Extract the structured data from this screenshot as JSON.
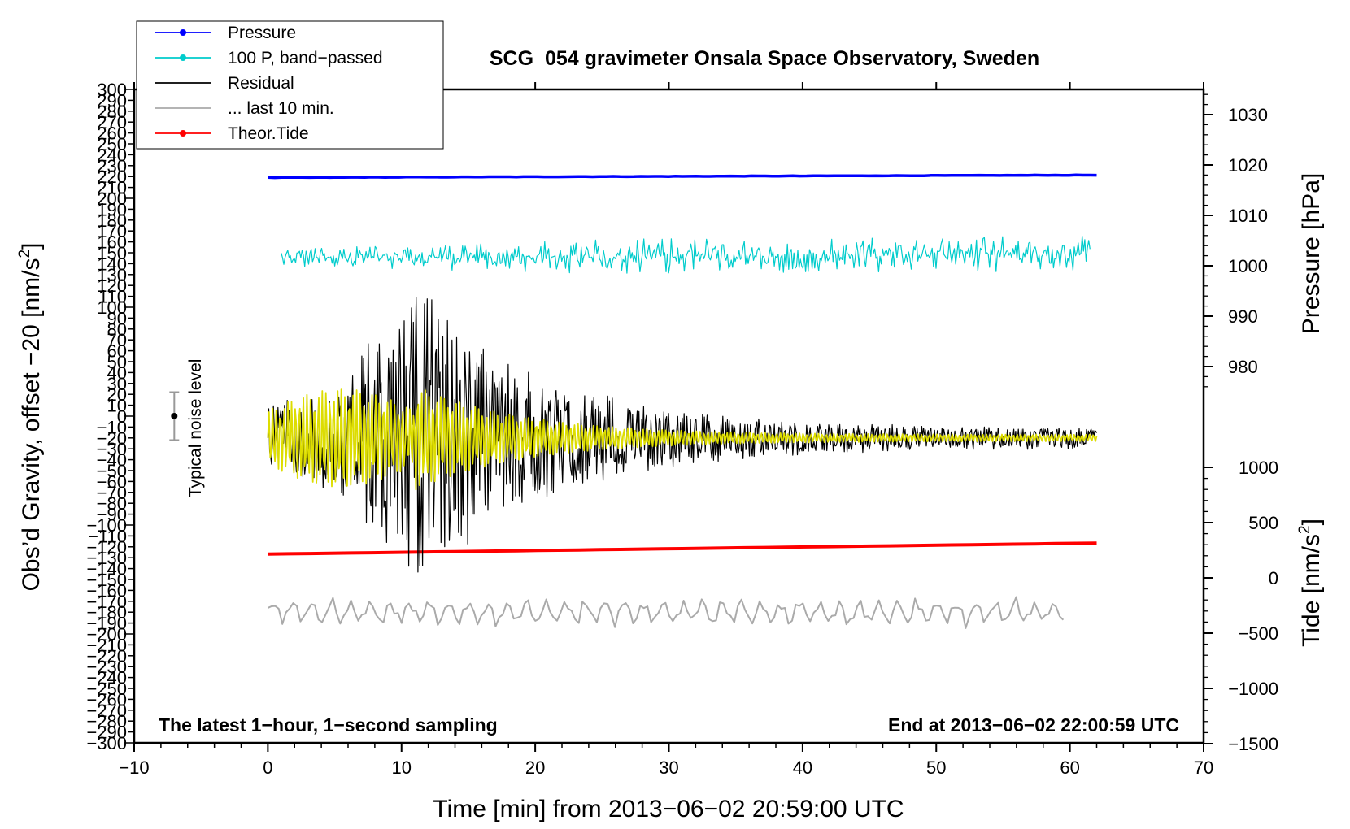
{
  "chart_data": {
    "type": "line",
    "title": "SCG_054 gravimeter Onsala Space Observatory, Sweden",
    "xlabel": "Time [min] from 2013−06−02 20:59:00 UTC",
    "ylabel_left_main": "Obs’d Gravity, offset −20 [nm/s",
    "ylabel_left_sup": "2",
    "ylabel_left_close": "]",
    "ylabel_right_top": "Pressure [hPa]",
    "ylabel_right_bottom_main": "Tide [nm/s",
    "ylabel_right_bottom_sup": "2",
    "ylabel_right_bottom_close": "]",
    "annotation_left": "The latest 1−hour, 1−second sampling",
    "annotation_right": "End at 2013−06−02 22:00:59 UTC",
    "noise_label": "Typical noise level",
    "xlim": [
      -10,
      70
    ],
    "x_ticks": [
      -10,
      0,
      10,
      20,
      30,
      40,
      50,
      60,
      70
    ],
    "x_tick_labels": [
      "−10",
      "0",
      "10",
      "20",
      "30",
      "40",
      "50",
      "60",
      "70"
    ],
    "ylim_left": [
      -300,
      300
    ],
    "y_left_tick_step": 10,
    "pressure_axis": {
      "ticks": [
        980,
        990,
        1000,
        1010,
        1020,
        1030
      ],
      "tick_labels": [
        "980",
        "990",
        "1000",
        "1010",
        "1020",
        "1030"
      ]
    },
    "tide_axis": {
      "ticks": [
        -1500,
        -1000,
        -500,
        0,
        500,
        1000
      ],
      "tick_labels": [
        "−1500",
        "−1000",
        "−500",
        "0",
        "500",
        "1000"
      ]
    },
    "legend": {
      "position": "top-left",
      "entries": [
        {
          "label": "Pressure",
          "color": "#0000ff",
          "marker": true
        },
        {
          "label": "100 P, band−passed",
          "color": "#00cccc",
          "marker": true
        },
        {
          "label": "Residual",
          "color": "#000000",
          "marker": false
        },
        {
          "label": "... last 10 min.",
          "color": "#aaaaaa",
          "marker": false
        },
        {
          "label": "Theor.Tide",
          "color": "#ff0000",
          "marker": true
        }
      ]
    },
    "series": [
      {
        "name": "Pressure",
        "color": "#0000ff",
        "axis": "pressure",
        "x": [
          0,
          62
        ],
        "y": [
          1017.5,
          1018
        ]
      },
      {
        "name": "100 P, band−passed",
        "color": "#00cccc",
        "axis": "left",
        "x_range": [
          1,
          61.5
        ],
        "baseline": 145,
        "amplitude": 22
      },
      {
        "name": "Residual",
        "color": "#000000",
        "axis": "left",
        "x_range": [
          0,
          62
        ],
        "baseline": -20,
        "amplitude_peak": 145
      },
      {
        "name": "Residual (filtered)",
        "color": "#dddd00",
        "axis": "left",
        "x_range": [
          0,
          62
        ],
        "baseline": -20,
        "amplitude_peak": 45
      },
      {
        "name": "... last 10 min.",
        "color": "#aaaaaa",
        "axis": "left",
        "x_range": [
          0,
          59.5
        ],
        "baseline": -180,
        "amplitude": 12
      },
      {
        "name": "Theor.Tide",
        "color": "#ff0000",
        "axis": "tide",
        "x": [
          0,
          62
        ],
        "y": [
          215,
          315
        ]
      }
    ],
    "noise_bar": {
      "x": -7,
      "center": 0,
      "half_width": 22
    }
  }
}
